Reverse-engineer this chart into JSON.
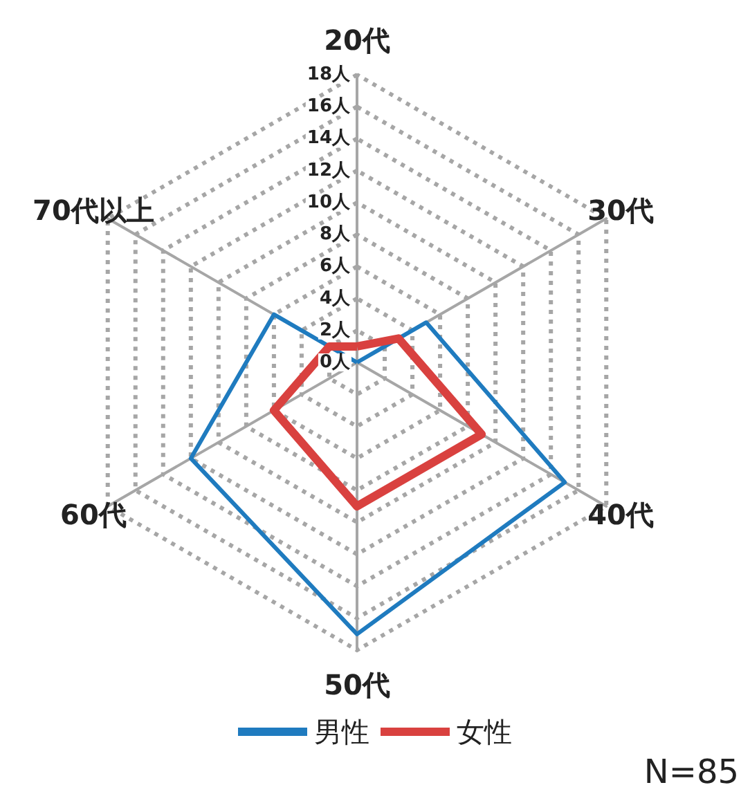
{
  "chart_data": {
    "type": "radar",
    "categories": [
      "20代",
      "30代",
      "40代",
      "50代",
      "60代",
      "70代以上"
    ],
    "series": [
      {
        "name": "男性",
        "color": "#1f7bbf",
        "values": [
          0,
          5,
          15,
          17,
          12,
          6
        ]
      },
      {
        "name": "女性",
        "color": "#d9413f",
        "values": [
          1,
          3,
          9,
          9,
          6,
          2
        ]
      }
    ],
    "ylim": [
      0,
      18
    ],
    "yticks": [
      {
        "value": 0,
        "label": "0人"
      },
      {
        "value": 2,
        "label": "2人"
      },
      {
        "value": 4,
        "label": "4人"
      },
      {
        "value": 6,
        "label": "6人"
      },
      {
        "value": 8,
        "label": "8人"
      },
      {
        "value": 10,
        "label": "10人"
      },
      {
        "value": 12,
        "label": "12人"
      },
      {
        "value": 14,
        "label": "14人"
      },
      {
        "value": 16,
        "label": "16人"
      },
      {
        "value": 18,
        "label": "18人"
      }
    ],
    "grid": true,
    "legend": "bottom",
    "marker": "none",
    "annotations": [
      "N=85"
    ]
  }
}
